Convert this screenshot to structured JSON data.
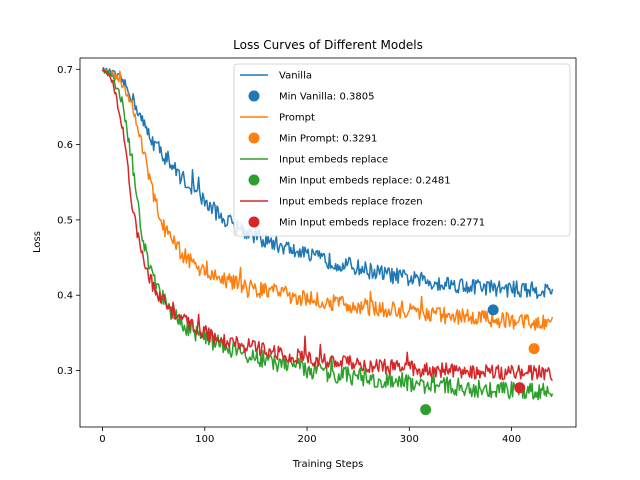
{
  "chart_data": {
    "type": "line",
    "title": "Loss Curves of Different Models",
    "xlabel": "Training Steps",
    "ylabel": "Loss",
    "xlim": [
      -22,
      463
    ],
    "ylim": [
      0.225,
      0.715
    ],
    "xticks": [
      0,
      100,
      200,
      300,
      400
    ],
    "yticks": [
      0.3,
      0.4,
      0.5,
      0.6,
      0.7
    ],
    "grid": false,
    "legend_position": "top-right",
    "series": [
      {
        "name": "Vanilla",
        "color": "#1f77b4",
        "points": [
          [
            0,
            0.7
          ],
          [
            10,
            0.695
          ],
          [
            20,
            0.684
          ],
          [
            30,
            0.66
          ],
          [
            40,
            0.627
          ],
          [
            50,
            0.603
          ],
          [
            60,
            0.586
          ],
          [
            70,
            0.568
          ],
          [
            80,
            0.553
          ],
          [
            90,
            0.539
          ],
          [
            100,
            0.524
          ],
          [
            110,
            0.512
          ],
          [
            120,
            0.5
          ],
          [
            140,
            0.485
          ],
          [
            160,
            0.472
          ],
          [
            180,
            0.463
          ],
          [
            200,
            0.452
          ],
          [
            220,
            0.446
          ],
          [
            240,
            0.44
          ],
          [
            260,
            0.433
          ],
          [
            280,
            0.427
          ],
          [
            300,
            0.422
          ],
          [
            320,
            0.418
          ],
          [
            340,
            0.415
          ],
          [
            360,
            0.412
          ],
          [
            380,
            0.41
          ],
          [
            400,
            0.408
          ],
          [
            420,
            0.407
          ],
          [
            440,
            0.406
          ]
        ],
        "noise": 0.011,
        "min_label": "Min Vanilla: 0.3805",
        "min_point": [
          382,
          0.3805
        ]
      },
      {
        "name": "Prompt",
        "color": "#ff7f0e",
        "points": [
          [
            0,
            0.7
          ],
          [
            10,
            0.694
          ],
          [
            20,
            0.68
          ],
          [
            30,
            0.651
          ],
          [
            40,
            0.59
          ],
          [
            50,
            0.53
          ],
          [
            60,
            0.49
          ],
          [
            70,
            0.468
          ],
          [
            80,
            0.452
          ],
          [
            90,
            0.441
          ],
          [
            100,
            0.432
          ],
          [
            120,
            0.421
          ],
          [
            140,
            0.412
          ],
          [
            160,
            0.406
          ],
          [
            180,
            0.401
          ],
          [
            200,
            0.396
          ],
          [
            220,
            0.392
          ],
          [
            240,
            0.387
          ],
          [
            260,
            0.384
          ],
          [
            280,
            0.381
          ],
          [
            300,
            0.378
          ],
          [
            320,
            0.375
          ],
          [
            340,
            0.372
          ],
          [
            360,
            0.37
          ],
          [
            380,
            0.368
          ],
          [
            400,
            0.366
          ],
          [
            420,
            0.364
          ],
          [
            440,
            0.362
          ]
        ],
        "noise": 0.011,
        "min_label": "Min Prompt: 0.3291",
        "min_point": [
          422,
          0.3291
        ]
      },
      {
        "name": "Input embeds replace",
        "color": "#2ca02c",
        "points": [
          [
            0,
            0.7
          ],
          [
            10,
            0.69
          ],
          [
            20,
            0.655
          ],
          [
            30,
            0.565
          ],
          [
            40,
            0.47
          ],
          [
            50,
            0.42
          ],
          [
            60,
            0.392
          ],
          [
            70,
            0.372
          ],
          [
            80,
            0.36
          ],
          [
            90,
            0.352
          ],
          [
            100,
            0.344
          ],
          [
            120,
            0.332
          ],
          [
            140,
            0.322
          ],
          [
            160,
            0.314
          ],
          [
            180,
            0.307
          ],
          [
            200,
            0.302
          ],
          [
            220,
            0.297
          ],
          [
            240,
            0.293
          ],
          [
            260,
            0.29
          ],
          [
            280,
            0.287
          ],
          [
            300,
            0.284
          ],
          [
            320,
            0.281
          ],
          [
            340,
            0.279
          ],
          [
            360,
            0.277
          ],
          [
            380,
            0.275
          ],
          [
            400,
            0.274
          ],
          [
            420,
            0.273
          ],
          [
            440,
            0.272
          ]
        ],
        "noise": 0.012,
        "min_label": "Min Input embeds replace: 0.2481",
        "min_point": [
          316,
          0.2481
        ]
      },
      {
        "name": "Input embeds replace frozen",
        "color": "#d62728",
        "points": [
          [
            0,
            0.7
          ],
          [
            10,
            0.685
          ],
          [
            20,
            0.62
          ],
          [
            30,
            0.51
          ],
          [
            40,
            0.445
          ],
          [
            50,
            0.41
          ],
          [
            60,
            0.39
          ],
          [
            70,
            0.376
          ],
          [
            80,
            0.365
          ],
          [
            90,
            0.357
          ],
          [
            100,
            0.35
          ],
          [
            120,
            0.34
          ],
          [
            140,
            0.333
          ],
          [
            160,
            0.327
          ],
          [
            180,
            0.321
          ],
          [
            200,
            0.317
          ],
          [
            220,
            0.313
          ],
          [
            240,
            0.31
          ],
          [
            260,
            0.307
          ],
          [
            280,
            0.305
          ],
          [
            300,
            0.303
          ],
          [
            320,
            0.301
          ],
          [
            340,
            0.3
          ],
          [
            360,
            0.299
          ],
          [
            380,
            0.298
          ],
          [
            400,
            0.297
          ],
          [
            420,
            0.297
          ],
          [
            440,
            0.296
          ]
        ],
        "noise": 0.01,
        "min_label": "Min Input embeds replace frozen: 0.2771",
        "min_point": [
          408,
          0.2771
        ]
      }
    ]
  }
}
